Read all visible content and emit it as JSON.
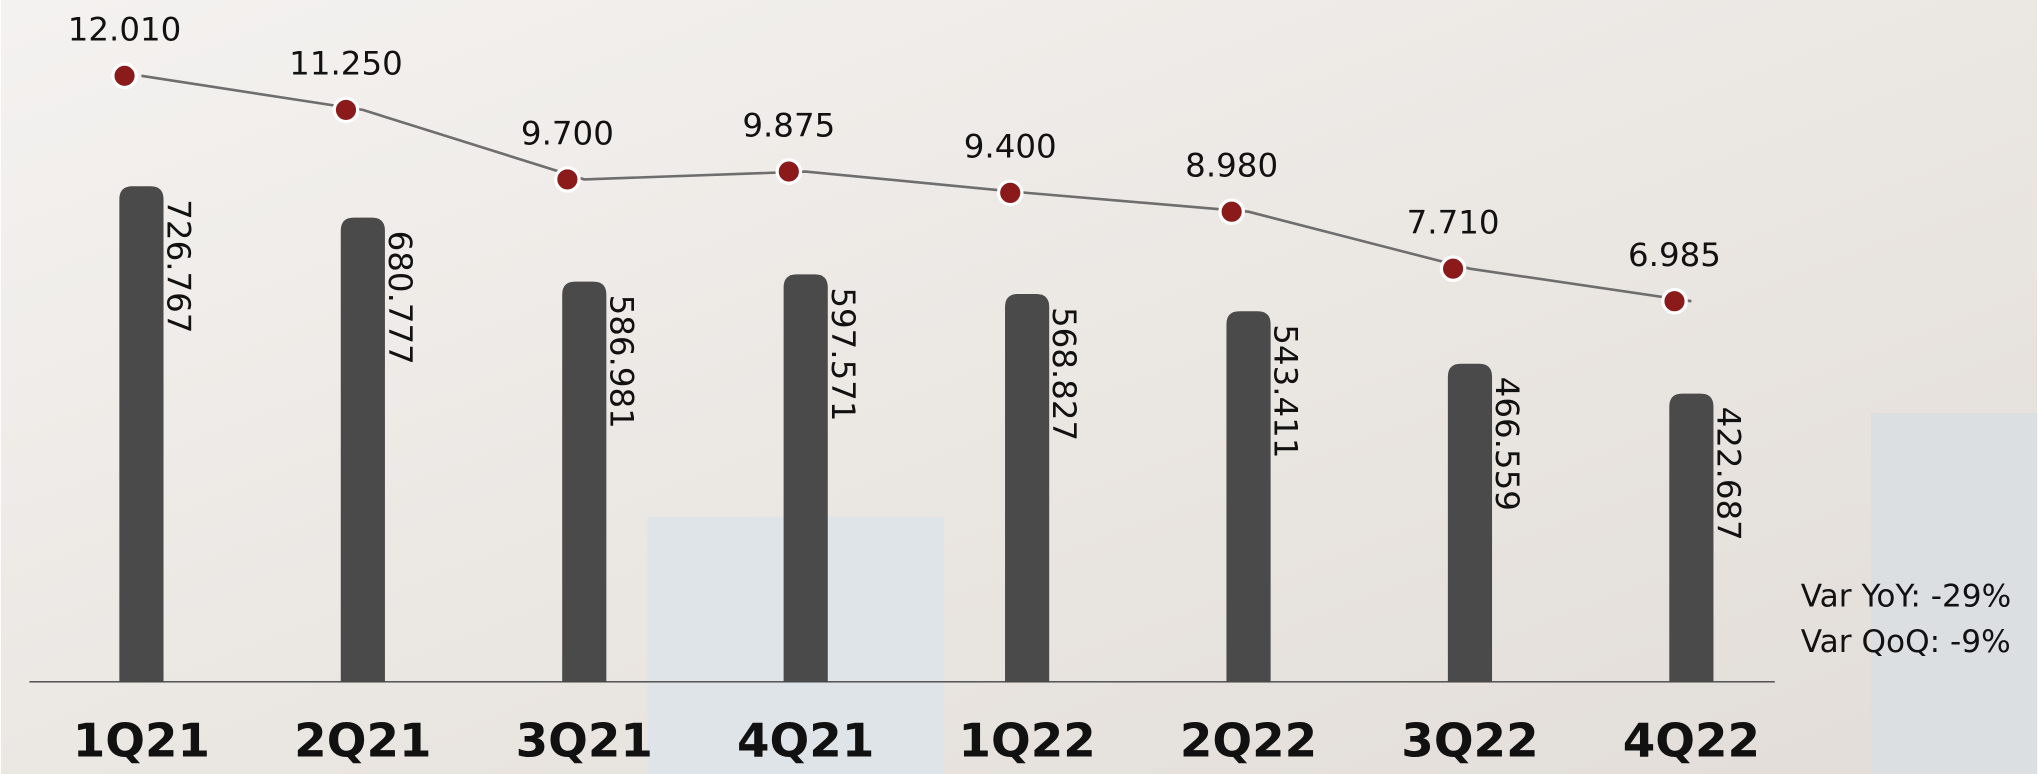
{
  "chart_data": {
    "type": "combo",
    "categories": [
      "1Q21",
      "2Q21",
      "3Q21",
      "4Q21",
      "1Q22",
      "2Q22",
      "3Q22",
      "4Q22"
    ],
    "series": [
      {
        "type": "bar",
        "color": "#4a4a4a",
        "values": [
          726767,
          680777,
          586981,
          597571,
          568827,
          543411,
          466559,
          422687
        ],
        "value_labels": [
          "726.767",
          "680.777",
          "586.981",
          "597.571",
          "568.827",
          "543.411",
          "466.559",
          "422.687"
        ]
      },
      {
        "type": "line",
        "axis": "y2",
        "color": "#8b1a1a",
        "line_color": "#6e6e6e",
        "values": [
          12010,
          11250,
          9700,
          9875,
          9400,
          8980,
          7710,
          6985
        ],
        "value_labels": [
          "12.010",
          "11.250",
          "9.700",
          "9.875",
          "9.400",
          "8.980",
          "7.710",
          "6.985"
        ]
      }
    ],
    "ylim": [
      0,
      1000000
    ],
    "y2lim": [
      -1500,
      13700
    ],
    "annotations": [
      "Var YoY: -29%",
      "Var QoQ: -9%"
    ]
  }
}
